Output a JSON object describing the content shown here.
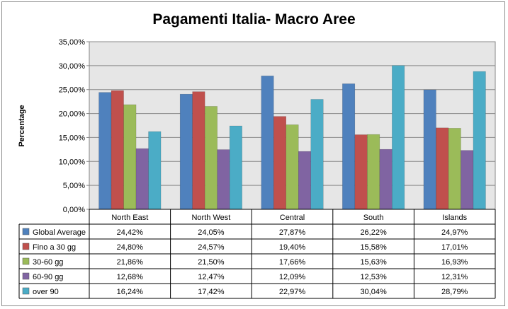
{
  "chart_data": {
    "type": "bar",
    "title": "Pagamenti Italia- Macro Aree",
    "ylabel": "Percentage",
    "xlabel": "",
    "ylim": [
      0,
      35
    ],
    "yticks": [
      "0,00%",
      "5,00%",
      "10,00%",
      "15,00%",
      "20,00%",
      "25,00%",
      "30,00%",
      "35,00%"
    ],
    "grid": true,
    "legend": "data-table",
    "categories": [
      "North East",
      "North West",
      "Central",
      "South",
      "Islands"
    ],
    "series": [
      {
        "name": "Global Average",
        "color": "#4f81bd",
        "values": [
          24.42,
          24.05,
          27.87,
          26.22,
          24.97
        ],
        "labels": [
          "24,42%",
          "24,05%",
          "27,87%",
          "26,22%",
          "24,97%"
        ]
      },
      {
        "name": "Fino a 30 gg",
        "color": "#c0504d",
        "values": [
          24.8,
          24.57,
          19.4,
          15.58,
          17.01
        ],
        "labels": [
          "24,80%",
          "24,57%",
          "19,40%",
          "15,58%",
          "17,01%"
        ]
      },
      {
        "name": "30-60 gg",
        "color": "#9bbb59",
        "values": [
          21.86,
          21.5,
          17.66,
          15.63,
          16.93
        ],
        "labels": [
          "21,86%",
          "21,50%",
          "17,66%",
          "15,63%",
          "16,93%"
        ]
      },
      {
        "name": "60-90 gg",
        "color": "#8064a2",
        "values": [
          12.68,
          12.47,
          12.09,
          12.53,
          12.31
        ],
        "labels": [
          "12,68%",
          "12,47%",
          "12,09%",
          "12,53%",
          "12,31%"
        ]
      },
      {
        "name": "over 90",
        "color": "#4bacc6",
        "values": [
          16.24,
          17.42,
          22.97,
          30.04,
          28.79
        ],
        "labels": [
          "16,24%",
          "17,42%",
          "22,97%",
          "30,04%",
          "28,79%"
        ]
      }
    ]
  }
}
